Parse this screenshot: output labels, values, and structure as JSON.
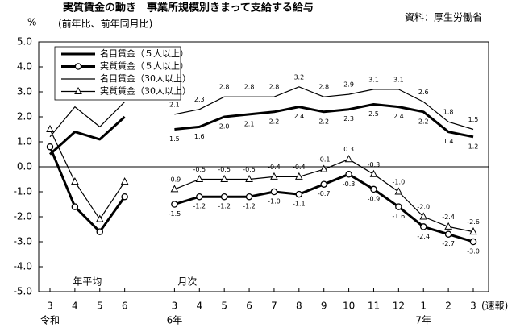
{
  "chart_data": {
    "type": "line",
    "title": "実質賃金の動き　事業所規模別きまって支給する給与",
    "source": "資料：厚生労働省",
    "y_label": "%",
    "subtitle": "(前年比、前年同月比)",
    "categories": [
      "3",
      "4",
      "5",
      "6",
      null,
      "3",
      "4",
      "5",
      "6",
      "7",
      "8",
      "9",
      "10",
      "11",
      "12",
      "1",
      "2",
      "3"
    ],
    "period_labels": [
      "令和",
      null,
      null,
      null,
      null,
      "6年",
      null,
      null,
      null,
      null,
      null,
      null,
      null,
      null,
      null,
      "7年",
      null,
      null
    ],
    "section_labels": [
      "年平均",
      "月次"
    ],
    "note": "(速報)",
    "ylim": [
      -5,
      5
    ],
    "yticks": [
      {
        "value": 5,
        "label": "5.0"
      },
      {
        "value": 4,
        "label": "4.0"
      },
      {
        "value": 3,
        "label": "3.0"
      },
      {
        "value": 2,
        "label": "2.0"
      },
      {
        "value": 1,
        "label": "1.0"
      },
      {
        "value": 0,
        "label": "0.0"
      },
      {
        "value": -1,
        "label": "-1.0"
      },
      {
        "value": -2,
        "label": "-2.0"
      },
      {
        "value": -3,
        "label": "-3.0"
      },
      {
        "value": -4,
        "label": "-4.0"
      },
      {
        "value": -5,
        "label": "-5.0"
      }
    ],
    "series": [
      {
        "name": "名目賃金（５人以上）",
        "color": "#000000",
        "style": "bold",
        "marker": "none",
        "label_position": "below",
        "values": [
          0.5,
          1.4,
          1.1,
          2.0,
          null,
          1.5,
          1.6,
          2.0,
          2.1,
          2.2,
          2.4,
          2.2,
          2.3,
          2.5,
          2.4,
          2.2,
          1.4,
          1.2
        ],
        "value_labels": [
          null,
          null,
          null,
          null,
          null,
          "1.5",
          "1.6",
          "2.0",
          "2.1",
          "2.2",
          "2.4",
          "2.2",
          "2.3",
          "2.5",
          "2.4",
          "2.2",
          "1.4",
          "1.2"
        ]
      },
      {
        "name": "実質賃金（５人以上）",
        "color": "#000000",
        "style": "bold",
        "marker": "circle",
        "label_position": "below",
        "values": [
          0.8,
          -1.6,
          -2.6,
          -1.2,
          null,
          -1.5,
          -1.2,
          -1.2,
          -1.2,
          -1.0,
          -1.1,
          -0.7,
          -0.3,
          -0.9,
          -1.6,
          -2.4,
          -2.7,
          -3.0
        ],
        "value_labels": [
          null,
          null,
          null,
          null,
          null,
          "-1.5",
          "-1.2",
          "-1.2",
          "-1.2",
          "-1.0",
          "-1.1",
          "-0.7",
          "-0.3",
          "-0.9",
          "-1.6",
          "-2.4",
          "-2.7",
          "-3.0"
        ]
      },
      {
        "name": "名目賃金（30人以上）",
        "color": "#000000",
        "style": "thin",
        "marker": "none",
        "label_position": "above",
        "values": [
          1.2,
          2.4,
          1.6,
          2.6,
          null,
          2.1,
          2.3,
          2.8,
          2.8,
          2.8,
          3.2,
          2.8,
          2.9,
          3.1,
          3.1,
          2.6,
          1.8,
          1.5
        ],
        "value_labels": [
          null,
          null,
          null,
          null,
          null,
          "2.1",
          "2.3",
          "2.8",
          "2.8",
          "2.8",
          "3.2",
          "2.8",
          "2.9",
          "3.1",
          "3.1",
          "2.6",
          "1.8",
          "1.5"
        ]
      },
      {
        "name": "実質賃金（30人以上）",
        "color": "#000000",
        "style": "thin",
        "marker": "triangle",
        "label_position": "above",
        "values": [
          1.5,
          -0.6,
          -2.1,
          -0.6,
          null,
          -0.9,
          -0.5,
          -0.5,
          -0.5,
          -0.4,
          -0.4,
          -0.1,
          0.3,
          -0.3,
          -1.0,
          -2.0,
          -2.4,
          -2.6
        ],
        "value_labels": [
          null,
          null,
          null,
          null,
          null,
          "-0.9",
          "-0.5",
          "-0.5",
          "-0.5",
          "-0.4",
          "-0.4",
          "-0.1",
          "0.3",
          "-0.3",
          "-1.0",
          "-2.0",
          "-2.4",
          "-2.6"
        ]
      }
    ],
    "legend": "upper left",
    "grid": false
  }
}
